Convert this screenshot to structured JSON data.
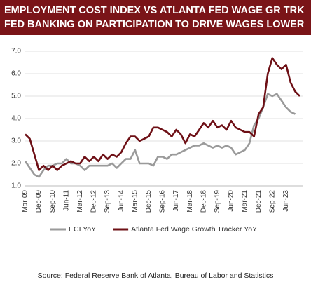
{
  "chart_data": {
    "type": "line",
    "title": [
      "EMPLOYMENT COST INDEX VS ATLANTA FED WAGE GR TRK",
      "FED BANKING ON PARTICIPATION TO DRIVE WAGES LOWER"
    ],
    "source": "Source:  Federal Reserve Bank of Atlanta,  Bureau of Labor and Statistics",
    "categories": [
      "Mar-09",
      null,
      null,
      "Dec-09",
      null,
      null,
      "Sep-10",
      null,
      null,
      "Jun-11",
      null,
      null,
      "Mar-12",
      null,
      null,
      "Dec-12",
      null,
      null,
      "Sep-13",
      null,
      null,
      "Jun-14",
      null,
      null,
      "Mar-15",
      null,
      null,
      "Dec-15",
      null,
      null,
      "Sep-16",
      null,
      null,
      "Jun-17",
      null,
      null,
      "Mar-18",
      null,
      null,
      "Dec-18",
      null,
      null,
      "Sep-19",
      null,
      null,
      "Jun-20",
      null,
      null,
      "Mar-21",
      null,
      null,
      "Dec-21",
      null,
      null,
      "Sep-22",
      null,
      null,
      "Jun-23",
      null,
      null,
      null
    ],
    "series": [
      {
        "name": "ECI YoY",
        "color": "#9a9a9a",
        "values": [
          2.1,
          1.8,
          1.5,
          1.4,
          1.7,
          1.9,
          1.9,
          2.0,
          2.0,
          2.2,
          2.0,
          2.0,
          1.9,
          1.7,
          1.9,
          1.9,
          1.9,
          1.9,
          1.9,
          2.0,
          1.8,
          2.0,
          2.2,
          2.2,
          2.6,
          2.0,
          2.0,
          2.0,
          1.9,
          2.3,
          2.3,
          2.2,
          2.4,
          2.4,
          2.5,
          2.6,
          2.7,
          2.8,
          2.8,
          2.9,
          2.8,
          2.7,
          2.8,
          2.7,
          2.8,
          2.7,
          2.4,
          2.5,
          2.6,
          2.9,
          3.7,
          4.0,
          4.5,
          5.1,
          5.0,
          5.1,
          4.8,
          4.5,
          4.3,
          4.2,
          null
        ]
      },
      {
        "name": "Atlanta Fed Wage Growth Tracker YoY",
        "color": "#6e1016",
        "values": [
          3.3,
          3.1,
          2.4,
          1.7,
          1.9,
          1.7,
          1.9,
          1.7,
          1.9,
          2.0,
          2.1,
          2.0,
          2.0,
          2.3,
          2.1,
          2.3,
          2.1,
          2.4,
          2.2,
          2.4,
          2.3,
          2.5,
          2.9,
          3.2,
          3.2,
          3.0,
          3.1,
          3.2,
          3.6,
          3.6,
          3.5,
          3.4,
          3.2,
          3.5,
          3.3,
          2.9,
          3.3,
          3.2,
          3.5,
          3.8,
          3.6,
          3.9,
          3.6,
          3.7,
          3.5,
          3.9,
          3.6,
          3.5,
          3.4,
          3.4,
          3.2,
          4.2,
          4.5,
          6.0,
          6.7,
          6.4,
          6.2,
          6.4,
          5.6,
          5.2,
          5.0
        ]
      }
    ],
    "ylim": [
      1,
      7
    ],
    "yticks": [
      {
        "value": 1,
        "label": "1.0"
      },
      {
        "value": 2,
        "label": "2.0"
      },
      {
        "value": 3,
        "label": "3.0"
      },
      {
        "value": 4,
        "label": "4.0"
      },
      {
        "value": 5,
        "label": "5.0"
      },
      {
        "value": 6,
        "label": "6.0"
      },
      {
        "value": 7,
        "label": "7.0"
      }
    ],
    "grid": true
  }
}
